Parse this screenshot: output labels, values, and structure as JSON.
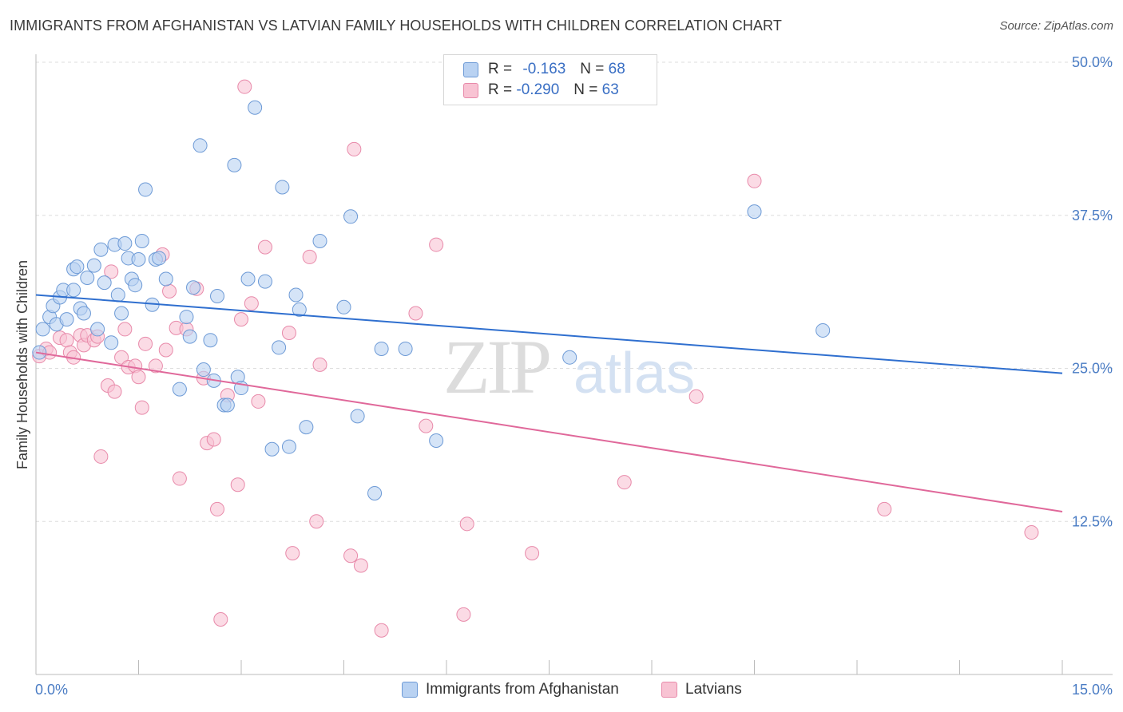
{
  "header": {
    "title": "IMMIGRANTS FROM AFGHANISTAN VS LATVIAN FAMILY HOUSEHOLDS WITH CHILDREN CORRELATION CHART",
    "source": "Source: ZipAtlas.com"
  },
  "watermark": {
    "zip": "ZIP",
    "atlas": "atlas"
  },
  "legend": {
    "rows": [
      {
        "r_label": "R =",
        "r_value": "-0.163",
        "n_label": "N =",
        "n_value": "68"
      },
      {
        "r_label": "R =",
        "r_value": "-0.290",
        "n_label": "N =",
        "n_value": "63"
      }
    ]
  },
  "bottom_legend": {
    "series1": "Immigrants from Afghanistan",
    "series2": "Latvians"
  },
  "colors": {
    "blue_fill": "#b9d2f2",
    "blue_stroke": "#6d9ad6",
    "blue_line": "#2f6fcf",
    "pink_fill": "#f8c3d3",
    "pink_stroke": "#e88aaa",
    "pink_line": "#e0689a",
    "tick_label": "#4a7cc4",
    "grid": "#dedede"
  },
  "chart_data": {
    "type": "scatter",
    "title": "IMMIGRANTS FROM AFGHANISTAN VS LATVIAN FAMILY HOUSEHOLDS WITH CHILDREN CORRELATION CHART",
    "xlabel": "",
    "ylabel": "Family Households with Children",
    "xlim": [
      0,
      15
    ],
    "ylim": [
      0,
      50
    ],
    "x_tick_labels": [
      "0.0%",
      "15.0%"
    ],
    "y_ticks": [
      12.5,
      25.0,
      37.5,
      50.0
    ],
    "y_tick_labels": [
      "12.5%",
      "25.0%",
      "37.5%",
      "50.0%"
    ],
    "grid": true,
    "legend_position": "top-center",
    "series": [
      {
        "name": "Immigrants from Afghanistan",
        "color": "#b9d2f2",
        "trend": {
          "x": [
            0,
            15
          ],
          "y": [
            31.0,
            24.6
          ]
        },
        "points": [
          [
            0.1,
            28.2
          ],
          [
            0.2,
            29.2
          ],
          [
            0.25,
            30.1
          ],
          [
            0.3,
            28.6
          ],
          [
            0.35,
            30.8
          ],
          [
            0.4,
            31.4
          ],
          [
            0.45,
            29.0
          ],
          [
            0.55,
            33.1
          ],
          [
            0.55,
            31.4
          ],
          [
            0.6,
            33.3
          ],
          [
            0.65,
            29.9
          ],
          [
            0.7,
            29.5
          ],
          [
            0.75,
            32.4
          ],
          [
            0.85,
            33.4
          ],
          [
            0.9,
            28.2
          ],
          [
            0.95,
            34.7
          ],
          [
            1.0,
            32.0
          ],
          [
            1.1,
            27.1
          ],
          [
            1.15,
            35.1
          ],
          [
            1.2,
            31.0
          ],
          [
            1.25,
            29.5
          ],
          [
            1.3,
            35.2
          ],
          [
            1.35,
            34.0
          ],
          [
            1.4,
            32.3
          ],
          [
            1.45,
            31.8
          ],
          [
            1.5,
            33.9
          ],
          [
            1.55,
            35.4
          ],
          [
            1.6,
            39.6
          ],
          [
            1.7,
            30.2
          ],
          [
            1.75,
            33.9
          ],
          [
            1.8,
            34.0
          ],
          [
            1.9,
            32.3
          ],
          [
            2.1,
            23.3
          ],
          [
            2.2,
            29.2
          ],
          [
            2.25,
            27.6
          ],
          [
            2.3,
            31.6
          ],
          [
            2.4,
            43.2
          ],
          [
            2.45,
            24.9
          ],
          [
            2.55,
            27.3
          ],
          [
            2.6,
            24.0
          ],
          [
            2.65,
            30.9
          ],
          [
            2.75,
            22.0
          ],
          [
            2.8,
            22.0
          ],
          [
            2.9,
            41.6
          ],
          [
            2.95,
            24.3
          ],
          [
            3.0,
            23.4
          ],
          [
            3.1,
            32.3
          ],
          [
            3.2,
            46.3
          ],
          [
            3.35,
            32.1
          ],
          [
            3.45,
            18.4
          ],
          [
            3.55,
            26.7
          ],
          [
            3.6,
            39.8
          ],
          [
            3.7,
            18.6
          ],
          [
            3.8,
            31.0
          ],
          [
            3.85,
            29.8
          ],
          [
            3.95,
            20.2
          ],
          [
            4.15,
            35.4
          ],
          [
            4.5,
            30.0
          ],
          [
            4.6,
            37.4
          ],
          [
            4.7,
            21.1
          ],
          [
            4.95,
            14.8
          ],
          [
            5.05,
            26.6
          ],
          [
            5.4,
            26.6
          ],
          [
            5.85,
            19.1
          ],
          [
            7.8,
            25.9
          ],
          [
            10.5,
            37.8
          ],
          [
            11.5,
            28.1
          ],
          [
            0.05,
            26.3
          ]
        ]
      },
      {
        "name": "Latvians",
        "color": "#f8c3d3",
        "trend": {
          "x": [
            0,
            15
          ],
          "y": [
            26.3,
            13.3
          ]
        },
        "points": [
          [
            0.05,
            26.0
          ],
          [
            0.15,
            26.6
          ],
          [
            0.2,
            26.3
          ],
          [
            0.35,
            27.5
          ],
          [
            0.45,
            27.3
          ],
          [
            0.5,
            26.3
          ],
          [
            0.55,
            25.9
          ],
          [
            0.65,
            27.7
          ],
          [
            0.7,
            26.9
          ],
          [
            0.75,
            27.7
          ],
          [
            0.85,
            27.3
          ],
          [
            0.9,
            27.6
          ],
          [
            0.95,
            17.8
          ],
          [
            1.05,
            23.6
          ],
          [
            1.1,
            32.9
          ],
          [
            1.15,
            23.1
          ],
          [
            1.25,
            25.9
          ],
          [
            1.3,
            28.2
          ],
          [
            1.35,
            25.1
          ],
          [
            1.45,
            25.2
          ],
          [
            1.5,
            24.3
          ],
          [
            1.55,
            21.8
          ],
          [
            1.6,
            27.0
          ],
          [
            1.75,
            25.2
          ],
          [
            1.85,
            34.3
          ],
          [
            1.9,
            26.5
          ],
          [
            1.95,
            31.3
          ],
          [
            2.05,
            28.3
          ],
          [
            2.1,
            16.0
          ],
          [
            2.2,
            28.2
          ],
          [
            2.35,
            31.5
          ],
          [
            2.45,
            24.2
          ],
          [
            2.5,
            18.9
          ],
          [
            2.6,
            19.2
          ],
          [
            2.65,
            13.5
          ],
          [
            2.7,
            4.5
          ],
          [
            2.8,
            22.8
          ],
          [
            2.95,
            15.5
          ],
          [
            3.0,
            29.0
          ],
          [
            3.05,
            48.0
          ],
          [
            3.15,
            30.3
          ],
          [
            3.25,
            22.3
          ],
          [
            3.35,
            34.9
          ],
          [
            3.7,
            27.9
          ],
          [
            3.75,
            9.9
          ],
          [
            4.0,
            34.1
          ],
          [
            4.1,
            12.5
          ],
          [
            4.15,
            25.3
          ],
          [
            4.6,
            9.7
          ],
          [
            4.65,
            42.9
          ],
          [
            4.75,
            8.9
          ],
          [
            5.05,
            3.6
          ],
          [
            5.55,
            29.5
          ],
          [
            5.7,
            20.3
          ],
          [
            5.85,
            35.1
          ],
          [
            6.25,
            4.9
          ],
          [
            6.3,
            12.3
          ],
          [
            7.25,
            9.9
          ],
          [
            8.6,
            15.7
          ],
          [
            9.65,
            22.7
          ],
          [
            10.5,
            40.3
          ],
          [
            12.4,
            13.5
          ],
          [
            14.55,
            11.6
          ]
        ]
      }
    ]
  }
}
